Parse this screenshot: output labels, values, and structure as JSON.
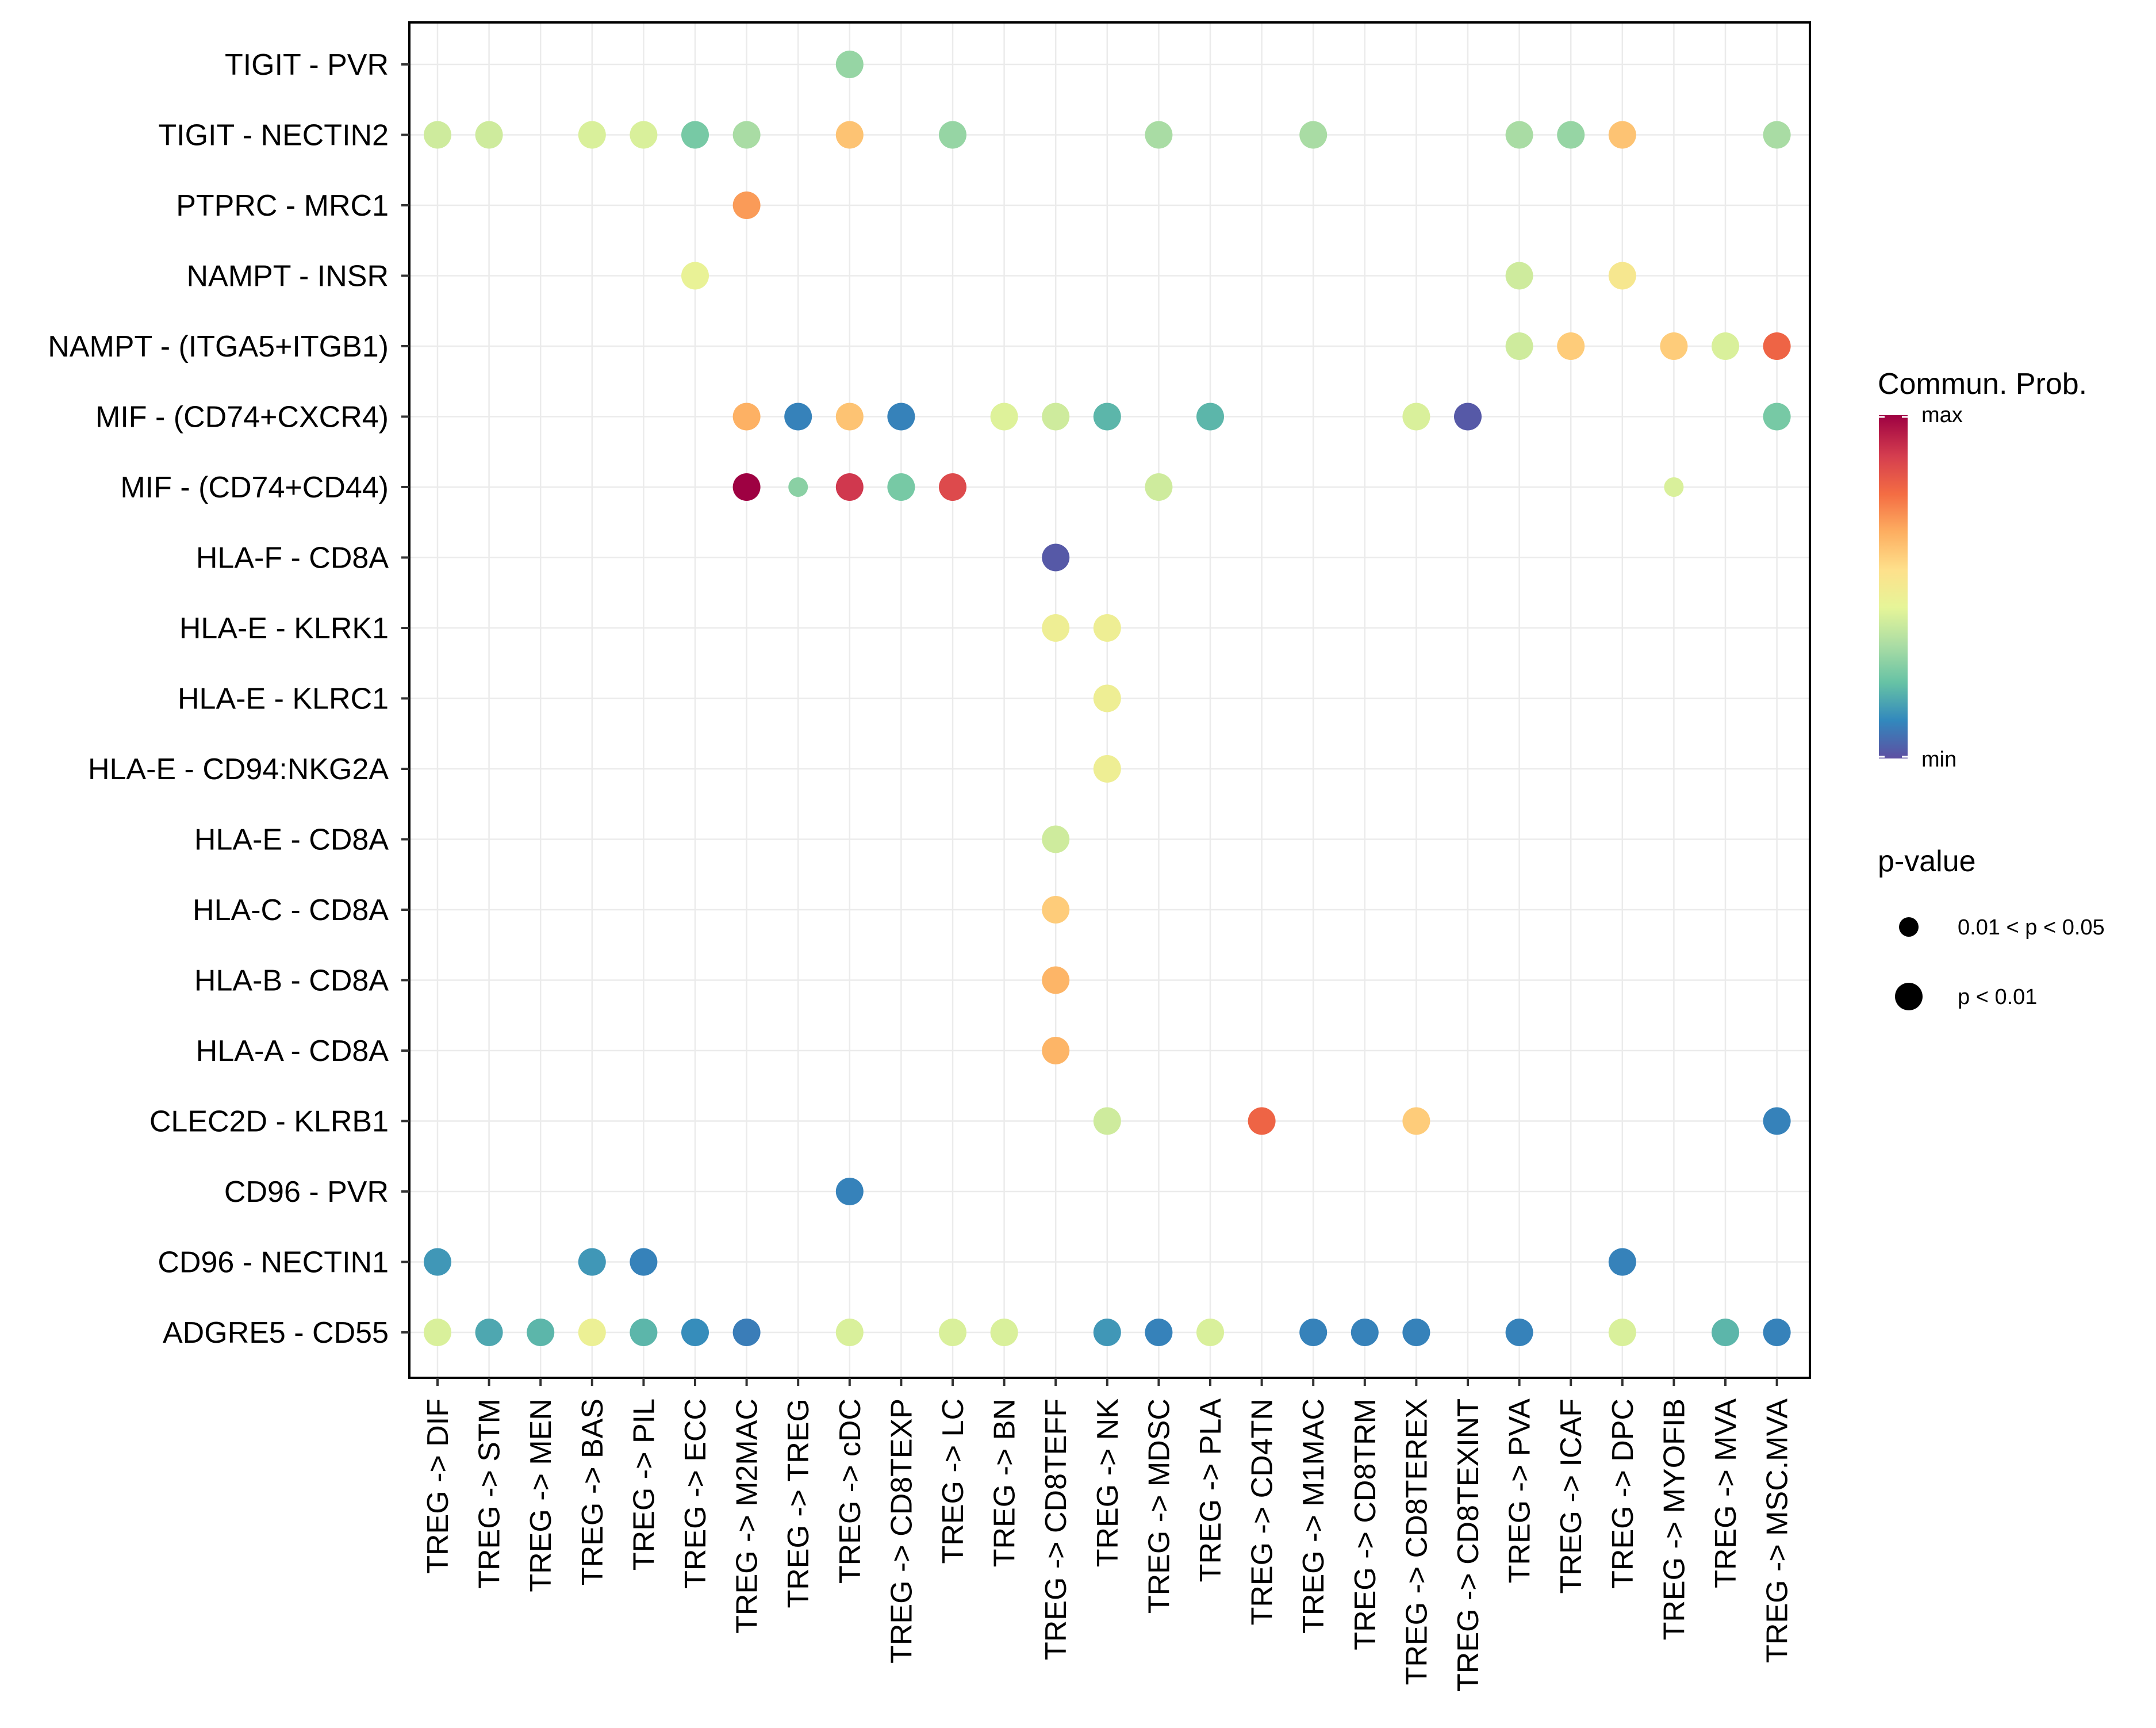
{
  "chart_data": {
    "type": "scatter",
    "subtype": "bubble-dot-plot",
    "title": "",
    "xlabel": "",
    "ylabel": "",
    "x_categories": [
      "TREG -> DIF",
      "TREG -> STM",
      "TREG -> MEN",
      "TREG -> BAS",
      "TREG -> PIL",
      "TREG -> ECC",
      "TREG -> M2MAC",
      "TREG -> TREG",
      "TREG -> cDC",
      "TREG -> CD8TEXP",
      "TREG -> LC",
      "TREG -> BN",
      "TREG -> CD8TEFF",
      "TREG -> NK",
      "TREG -> MDSC",
      "TREG -> PLA",
      "TREG -> CD4TN",
      "TREG -> M1MAC",
      "TREG -> CD8TRM",
      "TREG -> CD8TEREX",
      "TREG -> CD8TEXINT",
      "TREG -> PVA",
      "TREG -> ICAF",
      "TREG -> DPC",
      "TREG -> MYOFIB",
      "TREG -> MVA",
      "TREG -> MSC.MVA"
    ],
    "y_categories": [
      "TIGIT - PVR",
      "TIGIT - NECTIN2",
      "PTPRC - MRC1",
      "NAMPT - INSR",
      "NAMPT - (ITGA5+ITGB1)",
      "MIF - (CD74+CXCR4)",
      "MIF - (CD74+CD44)",
      "HLA-F - CD8A",
      "HLA-E - KLRK1",
      "HLA-E - KLRC1",
      "HLA-E - CD94:NKG2A",
      "HLA-E - CD8A",
      "HLA-C - CD8A",
      "HLA-B - CD8A",
      "HLA-A - CD8A",
      "CLEC2D - KLRB1",
      "CD96 - PVR",
      "CD96 - NECTIN1",
      "ADGRE5 - CD55"
    ],
    "color_scale": "Spectral (reversed): min = purple/blue, max = dark red",
    "points": [
      {
        "y": "TIGIT - PVR",
        "x": "TREG -> cDC",
        "prob": 0.3,
        "pval_class": 2
      },
      {
        "y": "TIGIT - NECTIN2",
        "x": "TREG -> DIF",
        "prob": 0.4,
        "pval_class": 2
      },
      {
        "y": "TIGIT - NECTIN2",
        "x": "TREG -> STM",
        "prob": 0.4,
        "pval_class": 2
      },
      {
        "y": "TIGIT - NECTIN2",
        "x": "TREG -> BAS",
        "prob": 0.42,
        "pval_class": 2
      },
      {
        "y": "TIGIT - NECTIN2",
        "x": "TREG -> PIL",
        "prob": 0.42,
        "pval_class": 2
      },
      {
        "y": "TIGIT - NECTIN2",
        "x": "TREG -> ECC",
        "prob": 0.25,
        "pval_class": 2
      },
      {
        "y": "TIGIT - NECTIN2",
        "x": "TREG -> M2MAC",
        "prob": 0.33,
        "pval_class": 2
      },
      {
        "y": "TIGIT - NECTIN2",
        "x": "TREG -> cDC",
        "prob": 0.62,
        "pval_class": 2
      },
      {
        "y": "TIGIT - NECTIN2",
        "x": "TREG -> LC",
        "prob": 0.3,
        "pval_class": 2
      },
      {
        "y": "TIGIT - NECTIN2",
        "x": "TREG -> MDSC",
        "prob": 0.33,
        "pval_class": 2
      },
      {
        "y": "TIGIT - NECTIN2",
        "x": "TREG -> M1MAC",
        "prob": 0.33,
        "pval_class": 2
      },
      {
        "y": "TIGIT - NECTIN2",
        "x": "TREG -> PVA",
        "prob": 0.33,
        "pval_class": 2
      },
      {
        "y": "TIGIT - NECTIN2",
        "x": "TREG -> ICAF",
        "prob": 0.3,
        "pval_class": 2
      },
      {
        "y": "TIGIT - NECTIN2",
        "x": "TREG -> DPC",
        "prob": 0.62,
        "pval_class": 2
      },
      {
        "y": "TIGIT - NECTIN2",
        "x": "TREG -> MSC.MVA",
        "prob": 0.33,
        "pval_class": 2
      },
      {
        "y": "PTPRC - MRC1",
        "x": "TREG -> M2MAC",
        "prob": 0.7,
        "pval_class": 2
      },
      {
        "y": "NAMPT - INSR",
        "x": "TREG -> ECC",
        "prob": 0.46,
        "pval_class": 2
      },
      {
        "y": "NAMPT - INSR",
        "x": "TREG -> PVA",
        "prob": 0.4,
        "pval_class": 2
      },
      {
        "y": "NAMPT - INSR",
        "x": "TREG -> DPC",
        "prob": 0.52,
        "pval_class": 2
      },
      {
        "y": "NAMPT - (ITGA5+ITGB1)",
        "x": "TREG -> PVA",
        "prob": 0.4,
        "pval_class": 2
      },
      {
        "y": "NAMPT - (ITGA5+ITGB1)",
        "x": "TREG -> ICAF",
        "prob": 0.6,
        "pval_class": 2
      },
      {
        "y": "NAMPT - (ITGA5+ITGB1)",
        "x": "TREG -> MYOFIB",
        "prob": 0.6,
        "pval_class": 2
      },
      {
        "y": "NAMPT - (ITGA5+ITGB1)",
        "x": "TREG -> MVA",
        "prob": 0.42,
        "pval_class": 2
      },
      {
        "y": "NAMPT - (ITGA5+ITGB1)",
        "x": "TREG -> MSC.MVA",
        "prob": 0.8,
        "pval_class": 2
      },
      {
        "y": "MIF - (CD74+CXCR4)",
        "x": "TREG -> M2MAC",
        "prob": 0.66,
        "pval_class": 2
      },
      {
        "y": "MIF - (CD74+CXCR4)",
        "x": "TREG -> TREG",
        "prob": 0.1,
        "pval_class": 2
      },
      {
        "y": "MIF - (CD74+CXCR4)",
        "x": "TREG -> cDC",
        "prob": 0.62,
        "pval_class": 2
      },
      {
        "y": "MIF - (CD74+CXCR4)",
        "x": "TREG -> CD8TEXP",
        "prob": 0.1,
        "pval_class": 2
      },
      {
        "y": "MIF - (CD74+CXCR4)",
        "x": "TREG -> BN",
        "prob": 0.43,
        "pval_class": 2
      },
      {
        "y": "MIF - (CD74+CXCR4)",
        "x": "TREG -> CD8TEFF",
        "prob": 0.4,
        "pval_class": 2
      },
      {
        "y": "MIF - (CD74+CXCR4)",
        "x": "TREG -> NK",
        "prob": 0.2,
        "pval_class": 2
      },
      {
        "y": "MIF - (CD74+CXCR4)",
        "x": "TREG -> PLA",
        "prob": 0.2,
        "pval_class": 2
      },
      {
        "y": "MIF - (CD74+CXCR4)",
        "x": "TREG -> CD8TEREX",
        "prob": 0.42,
        "pval_class": 2
      },
      {
        "y": "MIF - (CD74+CXCR4)",
        "x": "TREG -> CD8TEXINT",
        "prob": 0.02,
        "pval_class": 2
      },
      {
        "y": "MIF - (CD74+CXCR4)",
        "x": "TREG -> MSC.MVA",
        "prob": 0.25,
        "pval_class": 2
      },
      {
        "y": "MIF - (CD74+CD44)",
        "x": "TREG -> M2MAC",
        "prob": 1.0,
        "pval_class": 2
      },
      {
        "y": "MIF - (CD74+CD44)",
        "x": "TREG -> TREG",
        "prob": 0.28,
        "pval_class": 1
      },
      {
        "y": "MIF - (CD74+CD44)",
        "x": "TREG -> cDC",
        "prob": 0.9,
        "pval_class": 2
      },
      {
        "y": "MIF - (CD74+CD44)",
        "x": "TREG -> CD8TEXP",
        "prob": 0.25,
        "pval_class": 2
      },
      {
        "y": "MIF - (CD74+CD44)",
        "x": "TREG -> LC",
        "prob": 0.86,
        "pval_class": 2
      },
      {
        "y": "MIF - (CD74+CD44)",
        "x": "TREG -> MDSC",
        "prob": 0.4,
        "pval_class": 2
      },
      {
        "y": "MIF - (CD74+CD44)",
        "x": "TREG -> MYOFIB",
        "prob": 0.42,
        "pval_class": 1
      },
      {
        "y": "HLA-F - CD8A",
        "x": "TREG -> CD8TEFF",
        "prob": 0.02,
        "pval_class": 2
      },
      {
        "y": "HLA-E - KLRK1",
        "x": "TREG -> CD8TEFF",
        "prob": 0.48,
        "pval_class": 2
      },
      {
        "y": "HLA-E - KLRK1",
        "x": "TREG -> NK",
        "prob": 0.48,
        "pval_class": 2
      },
      {
        "y": "HLA-E - KLRC1",
        "x": "TREG -> NK",
        "prob": 0.48,
        "pval_class": 2
      },
      {
        "y": "HLA-E - CD94:NKG2A",
        "x": "TREG -> NK",
        "prob": 0.48,
        "pval_class": 2
      },
      {
        "y": "HLA-E - CD8A",
        "x": "TREG -> CD8TEFF",
        "prob": 0.4,
        "pval_class": 2
      },
      {
        "y": "HLA-C - CD8A",
        "x": "TREG -> CD8TEFF",
        "prob": 0.6,
        "pval_class": 2
      },
      {
        "y": "HLA-B - CD8A",
        "x": "TREG -> CD8TEFF",
        "prob": 0.65,
        "pval_class": 2
      },
      {
        "y": "HLA-A - CD8A",
        "x": "TREG -> CD8TEFF",
        "prob": 0.65,
        "pval_class": 2
      },
      {
        "y": "CLEC2D - KLRB1",
        "x": "TREG -> NK",
        "prob": 0.4,
        "pval_class": 2
      },
      {
        "y": "CLEC2D - KLRB1",
        "x": "TREG -> CD4TN",
        "prob": 0.8,
        "pval_class": 2
      },
      {
        "y": "CLEC2D - KLRB1",
        "x": "TREG -> CD8TEREX",
        "prob": 0.6,
        "pval_class": 2
      },
      {
        "y": "CLEC2D - KLRB1",
        "x": "TREG -> MSC.MVA",
        "prob": 0.1,
        "pval_class": 2
      },
      {
        "y": "CD96 - PVR",
        "x": "TREG -> cDC",
        "prob": 0.1,
        "pval_class": 2
      },
      {
        "y": "CD96 - NECTIN1",
        "x": "TREG -> DIF",
        "prob": 0.14,
        "pval_class": 2
      },
      {
        "y": "CD96 - NECTIN1",
        "x": "TREG -> BAS",
        "prob": 0.14,
        "pval_class": 2
      },
      {
        "y": "CD96 - NECTIN1",
        "x": "TREG -> PIL",
        "prob": 0.1,
        "pval_class": 2
      },
      {
        "y": "CD96 - NECTIN1",
        "x": "TREG -> DPC",
        "prob": 0.1,
        "pval_class": 2
      },
      {
        "y": "ADGRE5 - CD55",
        "x": "TREG -> DIF",
        "prob": 0.42,
        "pval_class": 2
      },
      {
        "y": "ADGRE5 - CD55",
        "x": "TREG -> STM",
        "prob": 0.17,
        "pval_class": 2
      },
      {
        "y": "ADGRE5 - CD55",
        "x": "TREG -> MEN",
        "prob": 0.2,
        "pval_class": 2
      },
      {
        "y": "ADGRE5 - CD55",
        "x": "TREG -> BAS",
        "prob": 0.47,
        "pval_class": 2
      },
      {
        "y": "ADGRE5 - CD55",
        "x": "TREG -> PIL",
        "prob": 0.2,
        "pval_class": 2
      },
      {
        "y": "ADGRE5 - CD55",
        "x": "TREG -> ECC",
        "prob": 0.12,
        "pval_class": 2
      },
      {
        "y": "ADGRE5 - CD55",
        "x": "TREG -> M2MAC",
        "prob": 0.09,
        "pval_class": 2
      },
      {
        "y": "ADGRE5 - CD55",
        "x": "TREG -> cDC",
        "prob": 0.42,
        "pval_class": 2
      },
      {
        "y": "ADGRE5 - CD55",
        "x": "TREG -> LC",
        "prob": 0.42,
        "pval_class": 2
      },
      {
        "y": "ADGRE5 - CD55",
        "x": "TREG -> BN",
        "prob": 0.42,
        "pval_class": 2
      },
      {
        "y": "ADGRE5 - CD55",
        "x": "TREG -> NK",
        "prob": 0.14,
        "pval_class": 2
      },
      {
        "y": "ADGRE5 - CD55",
        "x": "TREG -> MDSC",
        "prob": 0.1,
        "pval_class": 2
      },
      {
        "y": "ADGRE5 - CD55",
        "x": "TREG -> PLA",
        "prob": 0.42,
        "pval_class": 2
      },
      {
        "y": "ADGRE5 - CD55",
        "x": "TREG -> M1MAC",
        "prob": 0.1,
        "pval_class": 2
      },
      {
        "y": "ADGRE5 - CD55",
        "x": "TREG -> CD8TRM",
        "prob": 0.1,
        "pval_class": 2
      },
      {
        "y": "ADGRE5 - CD55",
        "x": "TREG -> CD8TEREX",
        "prob": 0.1,
        "pval_class": 2
      },
      {
        "y": "ADGRE5 - CD55",
        "x": "TREG -> PVA",
        "prob": 0.1,
        "pval_class": 2
      },
      {
        "y": "ADGRE5 - CD55",
        "x": "TREG -> DPC",
        "prob": 0.42,
        "pval_class": 2
      },
      {
        "y": "ADGRE5 - CD55",
        "x": "TREG -> MVA",
        "prob": 0.2,
        "pval_class": 2
      },
      {
        "y": "ADGRE5 - CD55",
        "x": "TREG -> MSC.MVA",
        "prob": 0.1,
        "pval_class": 2
      }
    ],
    "legend": {
      "color_title": "Commun. Prob.",
      "color_max_label": "max",
      "color_min_label": "min",
      "size_title": "p-value",
      "size_entries": [
        {
          "label": "0.01 < p < 0.05",
          "pval_class": 1
        },
        {
          "label": "p < 0.01",
          "pval_class": 2
        }
      ],
      "placement": "right"
    },
    "palette": [
      "#5E4FA2",
      "#3288BD",
      "#66C2A5",
      "#ABDDA4",
      "#E6F598",
      "#FEE08B",
      "#FDAE61",
      "#F46D43",
      "#D53E4F",
      "#9E0142"
    ]
  }
}
